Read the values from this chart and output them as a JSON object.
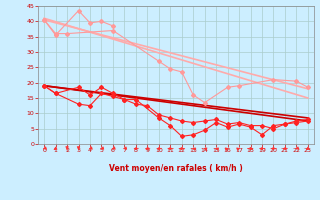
{
  "background_color": "#cceeff",
  "grid_color": "#aacccc",
  "xlabel": "Vent moyen/en rafales ( km/h )",
  "xlim": [
    -0.5,
    23.5
  ],
  "ylim": [
    0,
    45
  ],
  "yticks": [
    0,
    5,
    10,
    15,
    20,
    25,
    30,
    35,
    40,
    45
  ],
  "xticks": [
    0,
    1,
    2,
    3,
    4,
    5,
    6,
    7,
    8,
    9,
    10,
    11,
    12,
    13,
    14,
    15,
    16,
    17,
    18,
    19,
    20,
    21,
    22,
    23
  ],
  "series": [
    {
      "x": [
        0,
        1,
        3,
        4,
        5,
        6
      ],
      "y": [
        40.5,
        35.5,
        43.5,
        39.5,
        40.0,
        38.5
      ],
      "color": "#ff9999",
      "marker": "D",
      "markersize": 2.0,
      "linewidth": 0.8,
      "zorder": 3
    },
    {
      "x": [
        0,
        1,
        2,
        6,
        10,
        11,
        12,
        13,
        14,
        16,
        17,
        20,
        22,
        23
      ],
      "y": [
        40.5,
        36.0,
        36.0,
        37.0,
        27.0,
        24.5,
        23.5,
        16.0,
        13.5,
        18.5,
        19.0,
        21.0,
        20.5,
        18.5
      ],
      "color": "#ff9999",
      "marker": "D",
      "markersize": 2.0,
      "linewidth": 0.8,
      "zorder": 3
    },
    {
      "x": [
        0,
        23
      ],
      "y": [
        41.0,
        15.0
      ],
      "color": "#ffaaaa",
      "marker": null,
      "markersize": 0,
      "linewidth": 1.2,
      "zorder": 2
    },
    {
      "x": [
        0,
        23
      ],
      "y": [
        40.5,
        18.0
      ],
      "color": "#ffaaaa",
      "marker": null,
      "markersize": 0,
      "linewidth": 1.2,
      "zorder": 2
    },
    {
      "x": [
        0,
        1,
        3,
        4,
        5,
        6,
        7,
        8,
        10,
        11,
        12,
        13,
        14,
        15,
        16,
        17,
        18,
        19,
        20,
        21,
        22,
        23
      ],
      "y": [
        19.0,
        16.5,
        18.5,
        16.0,
        18.5,
        16.5,
        14.5,
        14.5,
        8.5,
        6.0,
        2.5,
        3.0,
        4.5,
        7.0,
        5.5,
        6.5,
        5.5,
        3.0,
        6.0,
        6.5,
        7.5,
        8.0
      ],
      "color": "#ff2222",
      "marker": "D",
      "markersize": 2.0,
      "linewidth": 0.8,
      "zorder": 4
    },
    {
      "x": [
        0,
        1,
        3,
        4,
        5,
        6,
        7,
        8,
        9,
        10,
        11,
        12,
        13,
        14,
        15,
        16,
        17,
        18,
        19,
        20,
        21,
        22,
        23
      ],
      "y": [
        19.0,
        16.5,
        13.0,
        12.5,
        16.5,
        15.5,
        14.5,
        13.0,
        12.5,
        9.5,
        8.5,
        7.5,
        7.0,
        7.5,
        8.0,
        6.5,
        7.0,
        6.0,
        6.0,
        5.0,
        6.5,
        7.0,
        7.5
      ],
      "color": "#ff2222",
      "marker": "D",
      "markersize": 2.0,
      "linewidth": 0.8,
      "zorder": 4
    },
    {
      "x": [
        0,
        23
      ],
      "y": [
        19.0,
        7.5
      ],
      "color": "#cc0000",
      "marker": null,
      "markersize": 0,
      "linewidth": 1.2,
      "zorder": 2
    },
    {
      "x": [
        0,
        23
      ],
      "y": [
        19.0,
        8.5
      ],
      "color": "#cc0000",
      "marker": null,
      "markersize": 0,
      "linewidth": 1.2,
      "zorder": 2
    }
  ],
  "wind_directions": [
    225,
    202,
    180,
    180,
    225,
    225,
    225,
    225,
    247,
    247,
    247,
    270,
    270,
    315,
    315,
    315,
    45,
    45,
    90,
    270,
    270,
    247,
    225,
    202
  ]
}
